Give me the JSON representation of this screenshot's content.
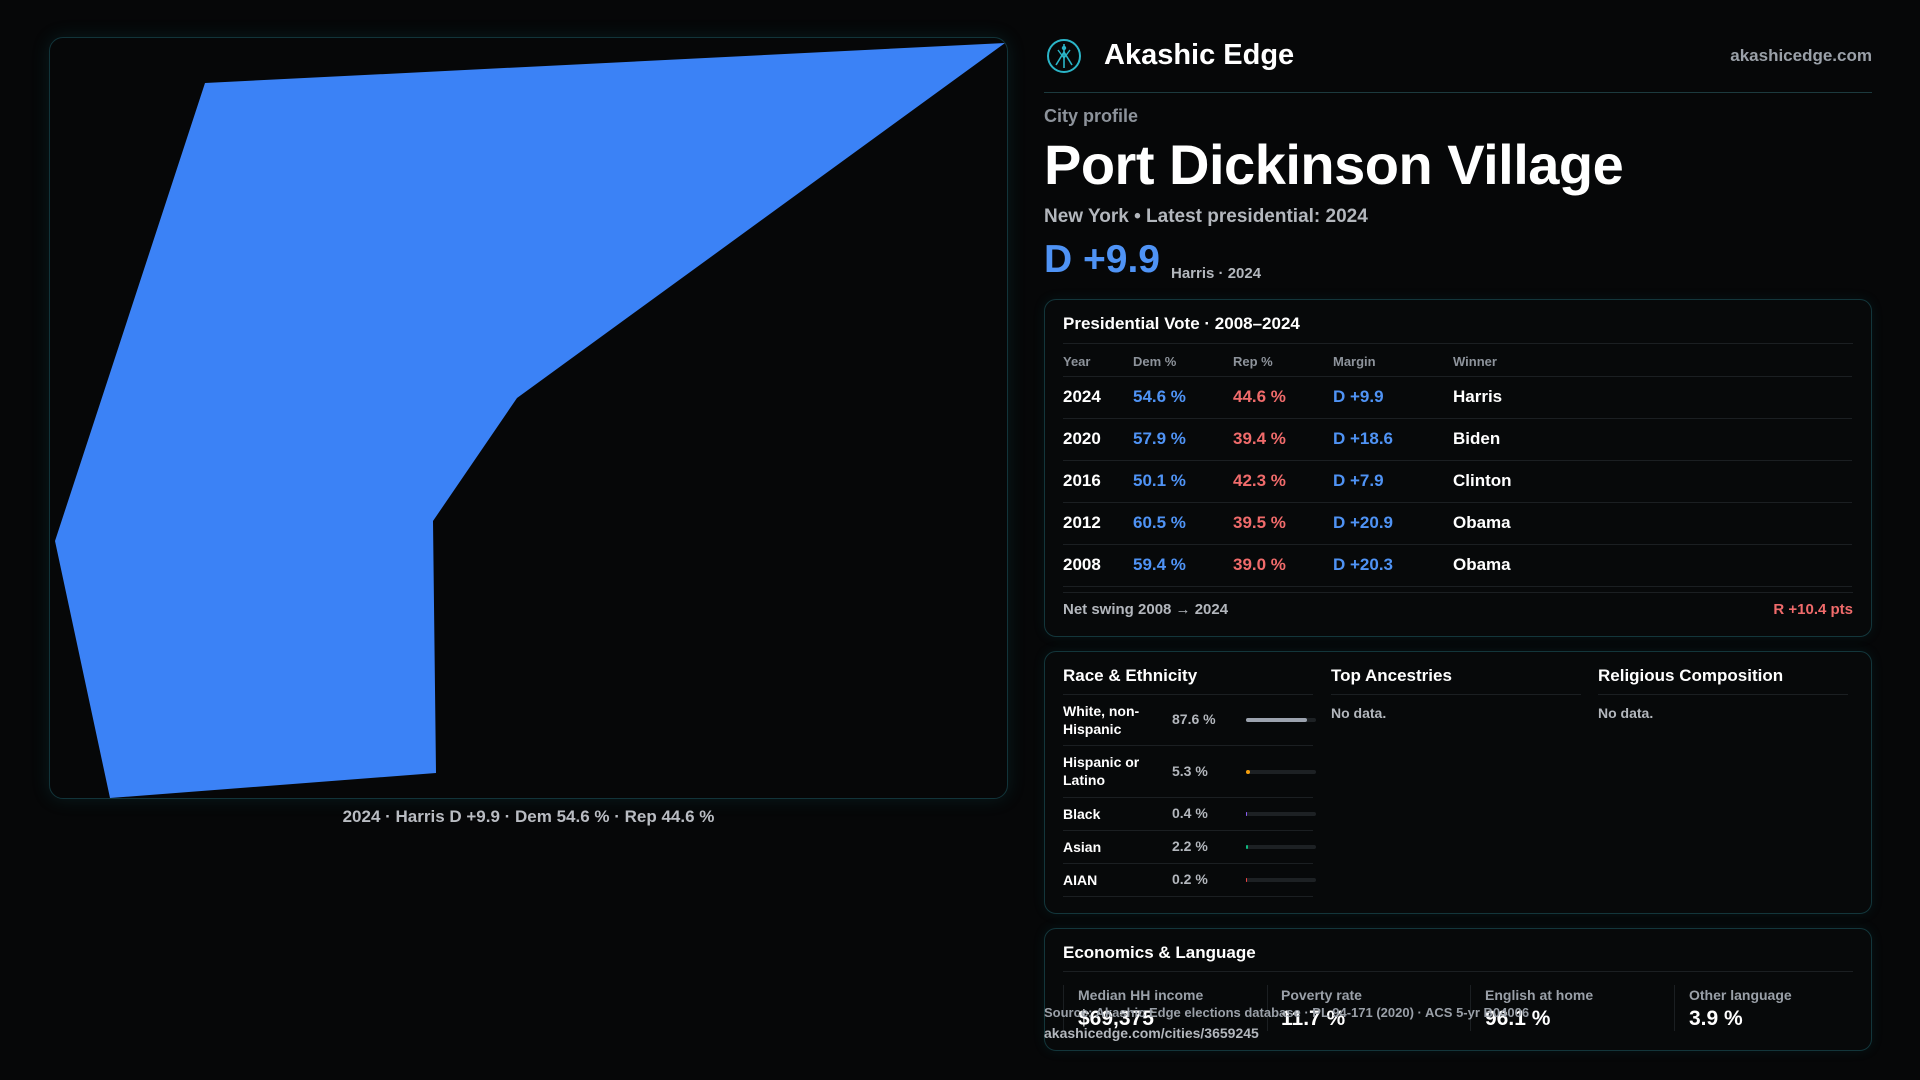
{
  "map": {
    "caption": "2024 · Harris D +9.9 · Dem 54.6 % · Rep 44.6 %",
    "fill_color": "#3b82f6"
  },
  "header": {
    "logo_icon": "tree-of-life-icon",
    "brand_name": "Akashic Edge",
    "brand_url": "akashicedge.com"
  },
  "profile": {
    "kicker": "City profile",
    "city_name": "Port Dickinson Village",
    "subtitle": "New York  • Latest presidential: 2024",
    "margin_label": "D +9.9",
    "margin_note": "Harris · 2024"
  },
  "presidential": {
    "title": "Presidential Vote · 2008–2024",
    "columns": [
      "Year",
      "Dem %",
      "Rep %",
      "Margin",
      "Winner"
    ],
    "rows": [
      {
        "year": "2024",
        "dem": "54.6 %",
        "rep": "44.6 %",
        "margin": "D +9.9",
        "winner": "Harris"
      },
      {
        "year": "2020",
        "dem": "57.9 %",
        "rep": "39.4 %",
        "margin": "D +18.6",
        "winner": "Biden"
      },
      {
        "year": "2016",
        "dem": "50.1 %",
        "rep": "42.3 %",
        "margin": "D +7.9",
        "winner": "Clinton"
      },
      {
        "year": "2012",
        "dem": "60.5 %",
        "rep": "39.5 %",
        "margin": "D +20.9",
        "winner": "Obama"
      },
      {
        "year": "2008",
        "dem": "59.4 %",
        "rep": "39.0 %",
        "margin": "D +20.3",
        "winner": "Obama"
      }
    ],
    "swing_label": "Net swing 2008 → 2024",
    "swing_value": "R +10.4 pts"
  },
  "demographics": {
    "race_title": "Race & Ethnicity",
    "race": [
      {
        "name": "White, non-Hispanic",
        "pct": "87.6 %",
        "share": 0.876,
        "color": "#9ca3af"
      },
      {
        "name": "Hispanic or Latino",
        "pct": "5.3 %",
        "share": 0.053,
        "color": "#f59e0b"
      },
      {
        "name": "Black",
        "pct": "0.4 %",
        "share": 0.004,
        "color": "#8b5cf6"
      },
      {
        "name": "Asian",
        "pct": "2.2 %",
        "share": 0.022,
        "color": "#10b981"
      },
      {
        "name": "AIAN",
        "pct": "0.2 %",
        "share": 0.002,
        "color": "#ef4444"
      }
    ],
    "ancestry_title": "Top Ancestries",
    "ancestry_empty": "No data.",
    "religion_title": "Religious Composition",
    "religion_empty": "No data."
  },
  "economics": {
    "title": "Economics & Language",
    "stats": [
      {
        "label": "Median HH income",
        "value": "$69,375"
      },
      {
        "label": "Poverty rate",
        "value": "11.7 %"
      },
      {
        "label": "English at home",
        "value": "96.1 %"
      },
      {
        "label": "Other language",
        "value": "3.9 %"
      }
    ]
  },
  "footer": {
    "source": "Source: Akashic Edge elections database · PL 94-171 (2020) · ACS 5-yr B04006",
    "url": "akashicedge.com/cities/3659245"
  }
}
